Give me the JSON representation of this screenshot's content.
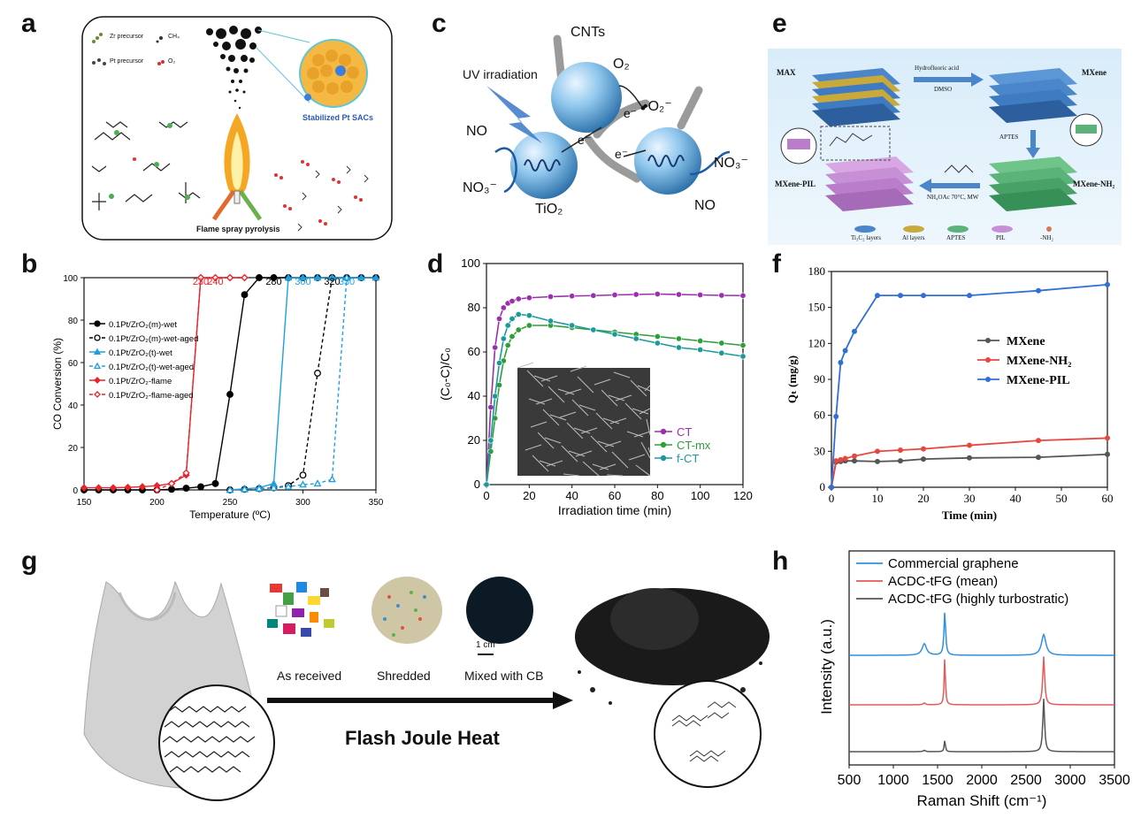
{
  "panels": {
    "a": {
      "letter": "a",
      "legend": [
        "Zr precursor",
        "CH₄",
        "Pt precursor",
        "O₂"
      ],
      "inset_label": "Stabilized Pt SACs",
      "caption": "Flame spray pyrolysis"
    },
    "b": {
      "letter": "b",
      "point_labels": [
        "230",
        "240",
        "280",
        "300",
        "320",
        "330"
      ]
    },
    "c": {
      "letter": "c",
      "labels": {
        "cnts": "CNTs",
        "uv": "UV irradiation",
        "o2": "O₂",
        "superoxide": "•O₂⁻",
        "no_left": "NO",
        "no3_left": "NO₃⁻",
        "tio2": "TiO₂",
        "no3_right": "NO₃⁻",
        "no_right": "NO",
        "e1": "e⁻",
        "e2": "e⁻",
        "e3": "e⁻"
      }
    },
    "d": {
      "letter": "d"
    },
    "e": {
      "letter": "e",
      "labels": {
        "max": "MAX",
        "mxene": "MXene",
        "hf": "Hydrofluoric acid",
        "dmso": "DMSO",
        "aptes": "APTES",
        "mxene_pil": "MXene-PIL",
        "mxene_nh2": "MXene-NH₂",
        "conditions": "NH₄OAc 70°C, MW"
      },
      "legend": [
        "Ti₃C₂ layers",
        "Al layers",
        "APTES",
        "PIL",
        "-NH₂"
      ]
    },
    "f": {
      "letter": "f"
    },
    "g": {
      "letter": "g",
      "steps": [
        "As received",
        "Shredded",
        "Mixed with CB"
      ],
      "scale": "1 cm",
      "process": "Flash Joule Heat"
    },
    "h": {
      "letter": "h"
    }
  },
  "chart_data": [
    {
      "id": "b",
      "type": "line",
      "xlabel": "Temperature (ºC)",
      "ylabel": "CO Conversion (%)",
      "xlim": [
        150,
        350
      ],
      "ylim": [
        0,
        100
      ],
      "xticks": [
        150,
        200,
        250,
        300,
        350
      ],
      "yticks": [
        0,
        20,
        40,
        60,
        80,
        100
      ],
      "legend_position": "left",
      "series": [
        {
          "name": "0.1Pt/ZrO₂(m)-wet",
          "color": "#000000",
          "dashed": false,
          "marker": "circle-filled",
          "x": [
            150,
            160,
            170,
            180,
            190,
            200,
            210,
            220,
            230,
            240,
            250,
            260,
            270,
            280,
            290,
            300,
            310,
            320,
            330,
            340,
            350
          ],
          "y": [
            0,
            0,
            0,
            0,
            0,
            0,
            0.3,
            0.8,
            1.5,
            3,
            45,
            92,
            100,
            100,
            100,
            100,
            100,
            100,
            100,
            100,
            100
          ]
        },
        {
          "name": "0.1Pt/ZrO₂(m)-wet-aged",
          "color": "#000000",
          "dashed": true,
          "marker": "circle-open",
          "x": [
            250,
            260,
            270,
            280,
            290,
            300,
            310,
            320
          ],
          "y": [
            0,
            0.3,
            0.6,
            1,
            2,
            7,
            55,
            100
          ]
        },
        {
          "name": "0.1Pt/ZrO₂(t)-wet",
          "color": "#1e9fe0",
          "dashed": false,
          "marker": "triangle-filled",
          "x": [
            250,
            260,
            270,
            280,
            290,
            300,
            310,
            320,
            330,
            340,
            350
          ],
          "y": [
            0,
            0.5,
            1,
            3,
            100,
            100,
            100,
            100,
            100,
            100,
            100
          ]
        },
        {
          "name": "0.1Pt/ZrO₂(t)-wet-aged",
          "color": "#1e9fe0",
          "dashed": true,
          "marker": "triangle-open",
          "x": [
            250,
            260,
            270,
            280,
            290,
            300,
            310,
            320,
            330
          ],
          "y": [
            0,
            0.3,
            0.6,
            1,
            1.5,
            2.5,
            3,
            5,
            100
          ]
        },
        {
          "name": "0.1Pt/ZrO₂-flame",
          "color": "#e8242c",
          "dashed": false,
          "marker": "diamond-filled",
          "x": [
            150,
            160,
            170,
            180,
            190,
            200,
            210,
            220,
            230,
            240,
            250,
            260
          ],
          "y": [
            1,
            1,
            1,
            1.2,
            1.5,
            2,
            3,
            7,
            100,
            100,
            100,
            100
          ]
        },
        {
          "name": "0.1Pt/ZrO₂-flame-aged",
          "color": "#e8242c",
          "dashed": true,
          "marker": "diamond-open",
          "x": [
            200,
            210,
            220,
            230,
            240,
            250,
            260
          ],
          "y": [
            0,
            3,
            8,
            100,
            100,
            100,
            100
          ]
        }
      ]
    },
    {
      "id": "d",
      "type": "line",
      "xlabel": "Irradiation time (min)",
      "ylabel": "(C₀-C)/C₀",
      "xlim": [
        0,
        120
      ],
      "ylim": [
        0,
        100
      ],
      "xticks": [
        0,
        20,
        40,
        60,
        80,
        100,
        120
      ],
      "yticks": [
        0,
        20,
        40,
        60,
        80,
        100
      ],
      "legend_position": "bottom-right",
      "series": [
        {
          "name": "CT",
          "color": "#9b2fae",
          "x": [
            0,
            2,
            4,
            6,
            8,
            10,
            12,
            15,
            20,
            30,
            40,
            50,
            60,
            70,
            80,
            90,
            100,
            110,
            120
          ],
          "y": [
            0,
            35,
            62,
            75,
            80,
            82,
            83,
            84,
            84.5,
            85,
            85.3,
            85.5,
            85.8,
            86,
            86.2,
            86,
            85.8,
            85.6,
            85.5
          ]
        },
        {
          "name": "CT-mx",
          "color": "#2e9e3a",
          "x": [
            0,
            2,
            4,
            6,
            8,
            10,
            12,
            15,
            20,
            30,
            40,
            50,
            60,
            70,
            80,
            90,
            100,
            110,
            120
          ],
          "y": [
            0,
            15,
            30,
            45,
            56,
            63,
            67,
            70,
            72,
            72,
            71,
            70,
            69,
            68,
            67,
            66,
            65,
            64,
            63
          ]
        },
        {
          "name": "f-CT",
          "color": "#1a9a9a",
          "x": [
            0,
            2,
            4,
            6,
            8,
            10,
            12,
            15,
            20,
            30,
            40,
            50,
            60,
            70,
            80,
            90,
            100,
            110,
            120
          ],
          "y": [
            0,
            20,
            40,
            55,
            66,
            72,
            75,
            77,
            76.5,
            74,
            72,
            70,
            68,
            66,
            64,
            62,
            61,
            59.5,
            58
          ]
        }
      ]
    },
    {
      "id": "f",
      "type": "line",
      "xlabel": "Time (min)",
      "ylabel": "Qₜ (mg/g)",
      "xlim": [
        0,
        60
      ],
      "ylim": [
        0,
        180
      ],
      "xticks": [
        0,
        10,
        20,
        30,
        40,
        50,
        60
      ],
      "yticks": [
        0,
        30,
        60,
        90,
        120,
        150,
        180
      ],
      "legend_position": "right",
      "series": [
        {
          "name": "MXene",
          "color": "#555555",
          "x": [
            0,
            1,
            2,
            3,
            5,
            10,
            15,
            20,
            30,
            45,
            60
          ],
          "y": [
            0,
            21,
            21.5,
            22,
            22,
            21.5,
            22,
            23.5,
            24.5,
            25,
            27.5
          ]
        },
        {
          "name": "MXene-NH₂",
          "color": "#e8473f",
          "x": [
            0,
            1,
            2,
            3,
            5,
            10,
            15,
            20,
            30,
            45,
            60
          ],
          "y": [
            0,
            22,
            23,
            24,
            26,
            30,
            31,
            32,
            35,
            39,
            41
          ]
        },
        {
          "name": "MXene-PIL",
          "color": "#2f6fd6",
          "x": [
            0,
            1,
            2,
            3,
            5,
            10,
            15,
            20,
            30,
            45,
            60
          ],
          "y": [
            0,
            59,
            104,
            114,
            130,
            160,
            160,
            160,
            160,
            164,
            169
          ]
        }
      ]
    },
    {
      "id": "h",
      "type": "line",
      "xlabel": "Raman Shift (cm⁻¹)",
      "ylabel": "Intensity (a.u.)",
      "xlim": [
        500,
        3500
      ],
      "xticks": [
        500,
        1000,
        1500,
        2000,
        2500,
        3000,
        3500
      ],
      "legend_position": "top-left",
      "series": [
        {
          "name": "Commercial graphene",
          "color": "#2f8fe0",
          "baseline": 2,
          "peaks": [
            [
              1350,
              0.25,
              60
            ],
            [
              1582,
              0.95,
              22
            ],
            [
              2700,
              0.45,
              60
            ]
          ]
        },
        {
          "name": "ACDC-tFG (mean)",
          "color": "#e45a5a",
          "baseline": 1,
          "peaks": [
            [
              1350,
              0.04,
              30
            ],
            [
              1582,
              1.05,
              16
            ],
            [
              2700,
              1.05,
              26
            ]
          ]
        },
        {
          "name": "ACDC-tFG (highly turbostratic)",
          "color": "#555555",
          "baseline": 0,
          "peaks": [
            [
              1350,
              0.03,
              30
            ],
            [
              1582,
              0.25,
              16
            ],
            [
              2700,
              1.15,
              24
            ]
          ]
        }
      ]
    }
  ]
}
